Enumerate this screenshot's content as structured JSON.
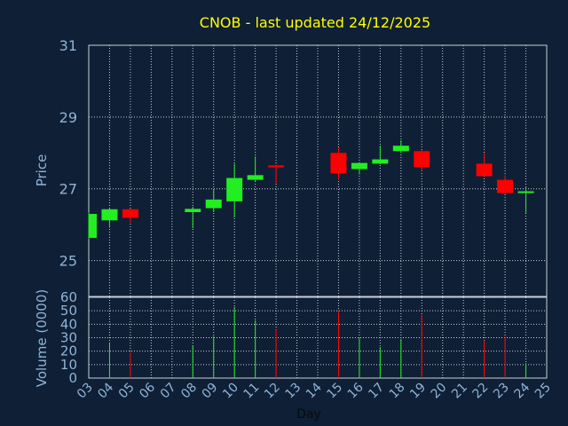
{
  "chart_data": {
    "type": "candlestick",
    "title": "CNOB - last updated 24/12/2025",
    "ylabel": "Price",
    "vlabel": "Volume (0000)",
    "xlabel": "Day",
    "ylim": [
      24,
      31
    ],
    "yticks": [
      25,
      27,
      29,
      31
    ],
    "vlim": [
      0,
      60
    ],
    "vticks": [
      0,
      10,
      20,
      30,
      40,
      50,
      60
    ],
    "xticks": [
      "03",
      "04",
      "05",
      "06",
      "07",
      "08",
      "09",
      "10",
      "11",
      "12",
      "13",
      "14",
      "15",
      "16",
      "17",
      "18",
      "19",
      "20",
      "21",
      "22",
      "23",
      "24",
      "25"
    ],
    "grid": true,
    "colors": {
      "up": "#22ee22",
      "down": "#ff0000",
      "grid": "#c8d0d8",
      "text": "#8fb4d8",
      "title": "#ffff00",
      "background": "#0f1f35"
    },
    "candles": [
      {
        "day": "03",
        "open": 25.63,
        "high": 26.35,
        "low": 25.6,
        "close": 26.3,
        "volume": 0
      },
      {
        "day": "04",
        "open": 26.12,
        "high": 26.46,
        "low": 25.92,
        "close": 26.43,
        "volume": 26
      },
      {
        "day": "05",
        "open": 26.43,
        "high": 26.45,
        "low": 26.05,
        "close": 26.19,
        "volume": 19
      },
      {
        "day": "08",
        "open": 26.35,
        "high": 26.5,
        "low": 25.9,
        "close": 26.44,
        "volume": 24
      },
      {
        "day": "09",
        "open": 26.46,
        "high": 27.0,
        "low": 26.35,
        "close": 26.7,
        "volume": 31
      },
      {
        "day": "10",
        "open": 26.65,
        "high": 27.7,
        "low": 26.2,
        "close": 27.3,
        "volume": 53
      },
      {
        "day": "11",
        "open": 27.25,
        "high": 27.9,
        "low": 27.22,
        "close": 27.38,
        "volume": 43
      },
      {
        "day": "12",
        "open": 27.65,
        "high": 27.68,
        "low": 27.15,
        "close": 27.62,
        "volume": 36
      },
      {
        "day": "15",
        "open": 28.0,
        "high": 28.15,
        "low": 27.25,
        "close": 27.43,
        "volume": 50
      },
      {
        "day": "16",
        "open": 27.55,
        "high": 27.74,
        "low": 27.4,
        "close": 27.72,
        "volume": 30
      },
      {
        "day": "17",
        "open": 27.7,
        "high": 28.2,
        "low": 27.68,
        "close": 27.82,
        "volume": 23
      },
      {
        "day": "18",
        "open": 28.05,
        "high": 28.35,
        "low": 28.0,
        "close": 28.2,
        "volume": 29
      },
      {
        "day": "19",
        "open": 28.05,
        "high": 28.07,
        "low": 27.5,
        "close": 27.6,
        "volume": 47
      },
      {
        "day": "22",
        "open": 27.7,
        "high": 28.0,
        "low": 27.35,
        "close": 27.35,
        "volume": 28
      },
      {
        "day": "23",
        "open": 27.25,
        "high": 27.38,
        "low": 26.85,
        "close": 26.88,
        "volume": 31
      },
      {
        "day": "24",
        "open": 26.9,
        "high": 27.05,
        "low": 26.33,
        "close": 26.93,
        "volume": 11
      }
    ]
  }
}
